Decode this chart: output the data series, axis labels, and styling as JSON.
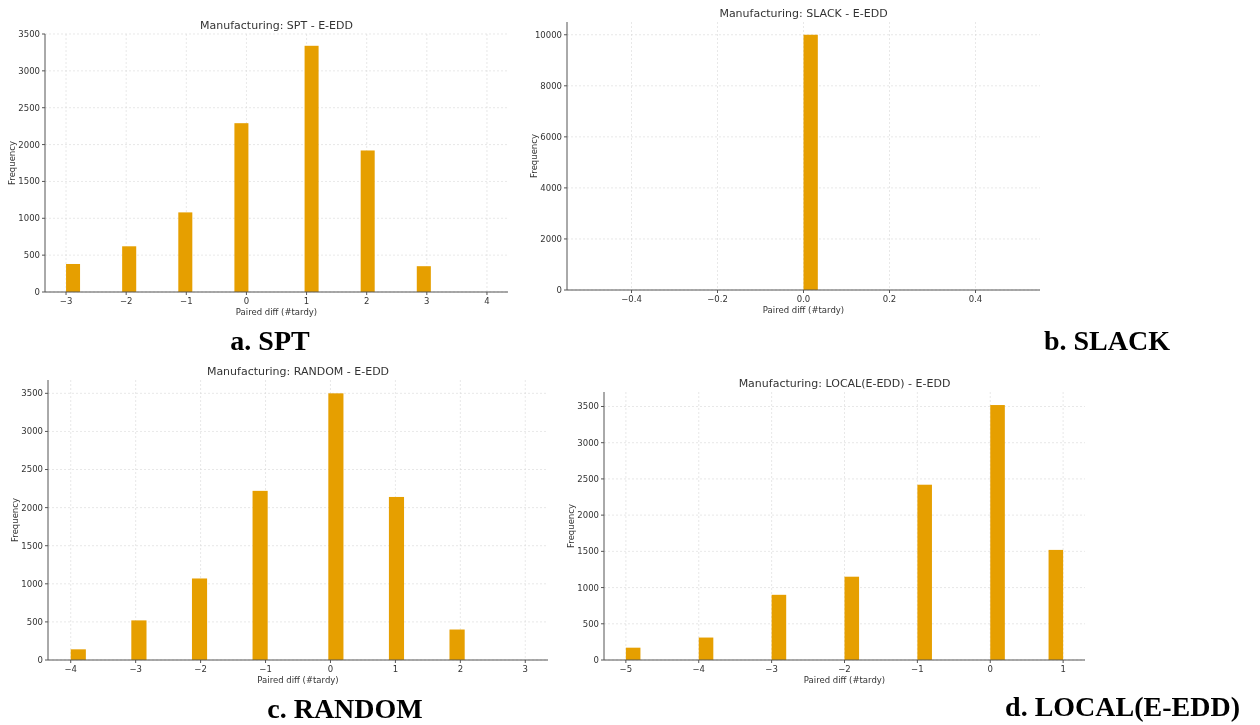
{
  "chart_data": [
    {
      "type": "histogram",
      "title": "Manufacturing: SPT - E-EDD",
      "xlabel": "Paired diff (#tardy)",
      "ylabel": "Frequency",
      "color": "#e69f00",
      "grid": true,
      "bins": [
        -3,
        -2.767,
        -2.533,
        -2.3,
        -2.067,
        -1.833,
        -1.6,
        -1.367,
        -1.133,
        -0.9,
        -0.667,
        -0.433,
        -0.2,
        0.033,
        0.267,
        0.5,
        0.733,
        0.967,
        1.2,
        1.433,
        1.667,
        1.9,
        2.133,
        2.367,
        2.6,
        2.833,
        3.067,
        3.3,
        3.533,
        3.767,
        4
      ],
      "values": [
        380,
        0,
        0,
        0,
        620,
        0,
        0,
        0,
        1080,
        0,
        0,
        0,
        2290,
        0,
        0,
        0,
        0,
        3340,
        0,
        0,
        0,
        1920,
        0,
        0,
        0,
        350,
        0,
        0,
        0,
        0
      ],
      "xlim": [
        -3.35,
        4.35
      ],
      "xticks": [
        {
          "value": -3,
          "label": "−3"
        },
        {
          "value": -2,
          "label": "−2"
        },
        {
          "value": -1,
          "label": "−1"
        },
        0,
        1,
        2,
        3,
        4
      ],
      "ylim": [
        0,
        3500
      ],
      "yticks": [
        0,
        500,
        1000,
        1500,
        2000,
        2500,
        3000,
        3500
      ],
      "annotations": [
        "a. SPT"
      ]
    },
    {
      "type": "histogram",
      "title": "Manufacturing: SLACK - E-EDD",
      "xlabel": "Paired diff (#tardy)",
      "ylabel": "Frequency",
      "color": "#e69f00",
      "grid": true,
      "bins": [
        0,
        0.0333
      ],
      "values": [
        10000
      ],
      "xlim": [
        -0.55,
        0.55
      ],
      "xticks": [
        {
          "value": -0.4,
          "label": "−0.4"
        },
        {
          "value": -0.2,
          "label": "−0.2"
        },
        {
          "value": 0,
          "label": "0.0"
        },
        0.2,
        0.4
      ],
      "ylim": [
        0,
        10500
      ],
      "yticks": [
        0,
        2000,
        4000,
        6000,
        8000,
        10000
      ],
      "annotations": [
        "b. SLACK"
      ]
    },
    {
      "type": "histogram",
      "title": "Manufacturing: RANDOM - E-EDD",
      "xlabel": "Paired diff (#tardy)",
      "ylabel": "Frequency",
      "color": "#e69f00",
      "grid": true,
      "bins": [
        -4,
        -3.767,
        -3.533,
        -3.3,
        -3.067,
        -2.833,
        -2.6,
        -2.367,
        -2.133,
        -1.9,
        -1.667,
        -1.433,
        -1.2,
        -0.967,
        -0.733,
        -0.5,
        -0.267,
        -0.033,
        0.2,
        0.433,
        0.667,
        0.9,
        1.133,
        1.367,
        1.6,
        1.833,
        2.067,
        2.3,
        2.533,
        2.767,
        3
      ],
      "values": [
        140,
        0,
        0,
        0,
        520,
        0,
        0,
        0,
        1070,
        0,
        0,
        0,
        2220,
        0,
        0,
        0,
        0,
        3500,
        0,
        0,
        0,
        2140,
        0,
        0,
        0,
        400,
        0,
        0,
        0,
        0
      ],
      "xlim": [
        -4.35,
        3.35
      ],
      "xticks": [
        {
          "value": -4,
          "label": "−4"
        },
        {
          "value": -3,
          "label": "−3"
        },
        {
          "value": -2,
          "label": "−2"
        },
        {
          "value": -1,
          "label": "−1"
        },
        0,
        1,
        2,
        3
      ],
      "ylim": [
        0,
        3675
      ],
      "yticks": [
        0,
        500,
        1000,
        1500,
        2000,
        2500,
        3000,
        3500
      ],
      "annotations": [
        "c. RANDOM"
      ]
    },
    {
      "type": "histogram",
      "title": "Manufacturing: LOCAL(E-EDD) - E-EDD",
      "xlabel": "Paired diff (#tardy)",
      "ylabel": "Frequency",
      "color": "#e69f00",
      "grid": true,
      "bins": [
        -5,
        -4.8,
        -4.6,
        -4.4,
        -4.2,
        -4,
        -3.8,
        -3.6,
        -3.4,
        -3.2,
        -3,
        -2.8,
        -2.6,
        -2.4,
        -2.2,
        -2,
        -1.8,
        -1.6,
        -1.4,
        -1.2,
        -1,
        -0.8,
        -0.6,
        -0.4,
        -0.2,
        0,
        0.2,
        0.4,
        0.6,
        0.8,
        1
      ],
      "values": [
        170,
        0,
        0,
        0,
        0,
        310,
        0,
        0,
        0,
        0,
        900,
        0,
        0,
        0,
        0,
        1150,
        0,
        0,
        0,
        0,
        2420,
        0,
        0,
        0,
        0,
        3520,
        0,
        0,
        0,
        1520
      ],
      "xlim": [
        -5.3,
        1.3
      ],
      "xticks": [
        {
          "value": -5,
          "label": "−5"
        },
        {
          "value": -4,
          "label": "−4"
        },
        {
          "value": -3,
          "label": "−3"
        },
        {
          "value": -2,
          "label": "−2"
        },
        {
          "value": -1,
          "label": "−1"
        },
        0,
        1
      ],
      "ylim": [
        0,
        3700
      ],
      "yticks": [
        0,
        500,
        1000,
        1500,
        2000,
        2500,
        3000,
        3500
      ],
      "annotations": [
        "d. LOCAL(E-EDD)"
      ]
    }
  ]
}
